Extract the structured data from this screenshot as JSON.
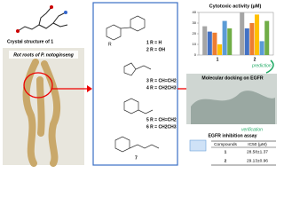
{
  "left": {
    "crystal_label": "Crystal structure of 1",
    "plant_label": "Rot roots of P. notoginseng"
  },
  "compounds": {
    "c1": "1 R = H",
    "c2": "2 R = OH",
    "c3": "3 R = CH=CH2",
    "c4": "4 R = CH2CH3",
    "c5": "5 R = CH=CH2",
    "c6": "6 R = CH2CH3",
    "c7": "7",
    "r": "R"
  },
  "chart_data": {
    "type": "bar",
    "title": "Cytotoxic activity (μM)",
    "categories": [
      "1",
      "2"
    ],
    "series": [
      {
        "color": "#a5a5a5",
        "values": [
          27,
          40
        ]
      },
      {
        "color": "#4472c4",
        "values": [
          22,
          25
        ]
      },
      {
        "color": "#ed7d31",
        "values": [
          21,
          30
        ]
      },
      {
        "color": "#ffc000",
        "values": [
          10,
          38
        ]
      },
      {
        "color": "#5b9bd5",
        "values": [
          32,
          13
        ]
      },
      {
        "color": "#70ad47",
        "values": [
          25,
          32
        ]
      }
    ],
    "ylim": [
      0,
      40
    ],
    "yticks": [
      0,
      10,
      20,
      30,
      40
    ]
  },
  "arrows": {
    "prediction": "prediction",
    "verification": "verification"
  },
  "docking": {
    "title": "Molecular docking on EGFR"
  },
  "assay": {
    "title": "EGFR inhibition assay",
    "table": {
      "header": [
        "Compounds",
        "IC50 (μM)"
      ],
      "rows": [
        [
          "1",
          "28.58±1.37"
        ],
        [
          "2",
          "29.13±0.96"
        ]
      ]
    }
  }
}
